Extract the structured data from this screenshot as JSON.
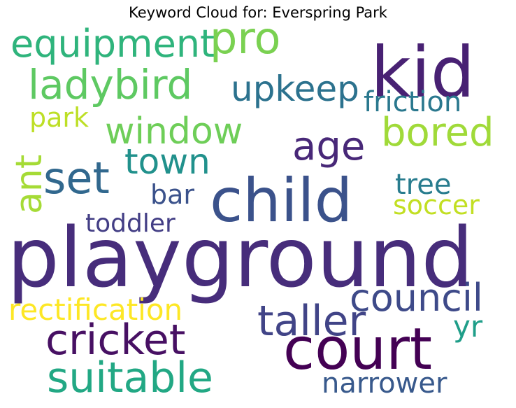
{
  "title": "Keyword Cloud for: Everspring Park",
  "words": [
    {
      "text": "playground",
      "color": "#472d7b"
    },
    {
      "text": "kid",
      "color": "#482173"
    },
    {
      "text": "child",
      "color": "#3b528b"
    },
    {
      "text": "court",
      "color": "#440154"
    },
    {
      "text": "taller",
      "color": "#414487"
    },
    {
      "text": "cricket",
      "color": "#471063"
    },
    {
      "text": "suitable",
      "color": "#22a884"
    },
    {
      "text": "council",
      "color": "#3e4a89"
    },
    {
      "text": "ladybird",
      "color": "#5ec962"
    },
    {
      "text": "upkeep",
      "color": "#2c728e"
    },
    {
      "text": "window",
      "color": "#6ece58"
    },
    {
      "text": "bored",
      "color": "#a0da39"
    },
    {
      "text": "age",
      "color": "#482878"
    },
    {
      "text": "equipment",
      "color": "#2fb47c"
    },
    {
      "text": "pro",
      "color": "#7ad151"
    },
    {
      "text": "set",
      "color": "#31688e"
    },
    {
      "text": "town",
      "color": "#21918c"
    },
    {
      "text": "friction",
      "color": "#2a788e"
    },
    {
      "text": "ant",
      "color": "#a5db36"
    },
    {
      "text": "rectification",
      "color": "#fde725"
    },
    {
      "text": "narrower",
      "color": "#38598c"
    },
    {
      "text": "toddler",
      "color": "#433e85"
    },
    {
      "text": "tree",
      "color": "#287c8e"
    },
    {
      "text": "soccer",
      "color": "#c2df23"
    },
    {
      "text": "bar",
      "color": "#3b528b"
    },
    {
      "text": "park",
      "color": "#bddf26"
    },
    {
      "text": "yr",
      "color": "#1f9e89"
    }
  ]
}
